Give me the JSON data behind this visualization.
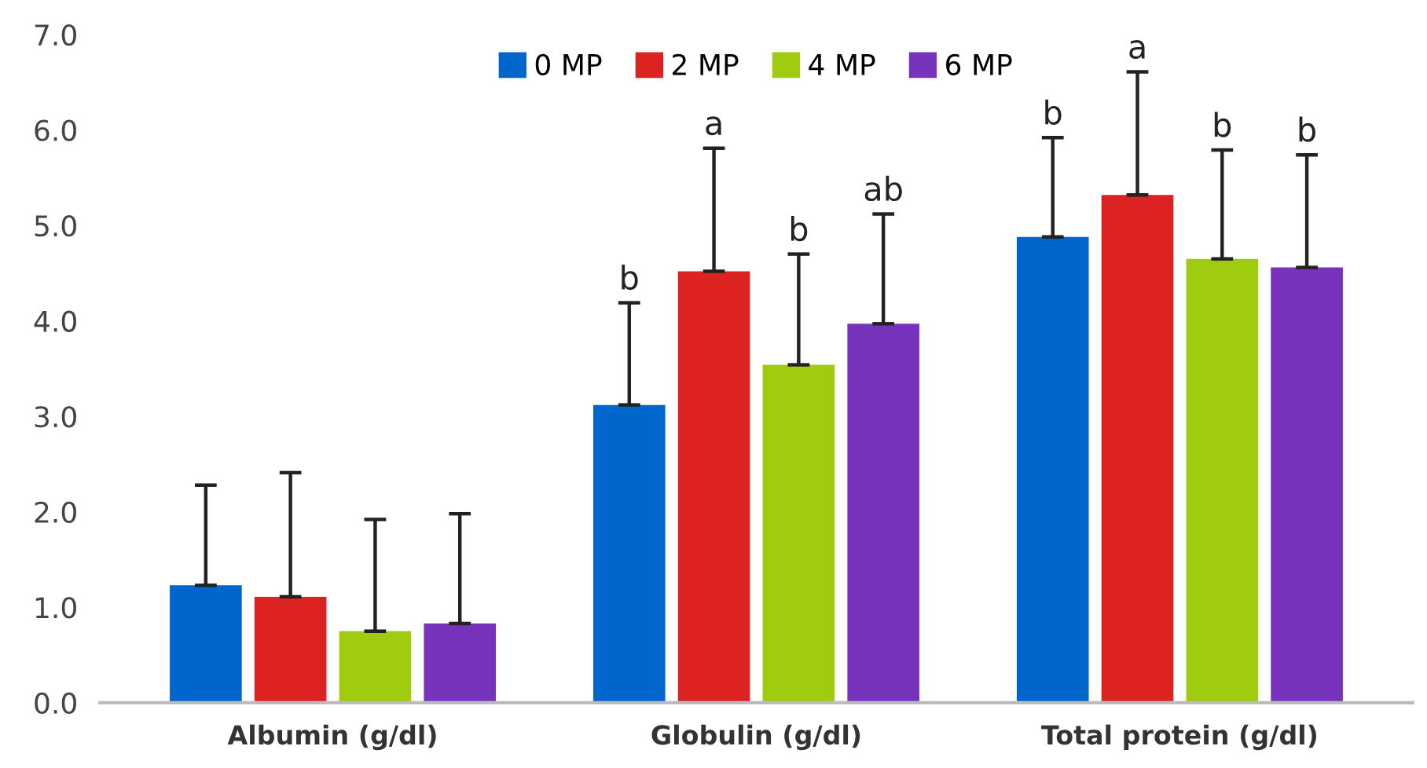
{
  "chart_data": {
    "type": "bar",
    "categories": [
      "Albumin (g/dl)",
      "Globulin (g/dl)",
      "Total protein (g/dl)"
    ],
    "series": [
      {
        "name": "0 MP",
        "color": "#0066cc",
        "values": [
          1.23,
          3.12,
          4.88
        ],
        "errors": [
          [
            1.23,
            2.28
          ],
          [
            3.12,
            4.19
          ],
          [
            4.88,
            5.92
          ]
        ]
      },
      {
        "name": "2 MP",
        "color": "#dd2222",
        "values": [
          1.11,
          4.52,
          5.32
        ],
        "errors": [
          [
            1.11,
            2.41
          ],
          [
            4.52,
            5.81
          ],
          [
            5.32,
            6.61
          ]
        ]
      },
      {
        "name": "4 MP",
        "color": "#a0cc10",
        "values": [
          0.75,
          3.54,
          4.65
        ],
        "errors": [
          [
            0.75,
            1.92
          ],
          [
            3.54,
            4.7
          ],
          [
            4.65,
            5.79
          ]
        ]
      },
      {
        "name": "6 MP",
        "color": "#7733bb",
        "values": [
          0.83,
          3.97,
          4.56
        ],
        "errors": [
          [
            0.83,
            1.98
          ],
          [
            3.97,
            5.12
          ],
          [
            4.56,
            5.74
          ]
        ]
      }
    ],
    "annotations": [
      "b",
      "a",
      "b",
      "ab",
      "b",
      "a",
      "b",
      "b"
    ],
    "ylim": [
      0,
      7
    ],
    "yticks": [
      {
        "value": 0,
        "label": "0.0"
      },
      {
        "value": 1,
        "label": "1.0"
      },
      {
        "value": 2,
        "label": "2.0"
      },
      {
        "value": 3,
        "label": "3.0"
      },
      {
        "value": 4,
        "label": "4.0"
      },
      {
        "value": 5,
        "label": "5.0"
      },
      {
        "value": 6,
        "label": "6.0"
      },
      {
        "value": 7,
        "label": "7.0"
      }
    ],
    "grid": false,
    "legend": "top"
  }
}
